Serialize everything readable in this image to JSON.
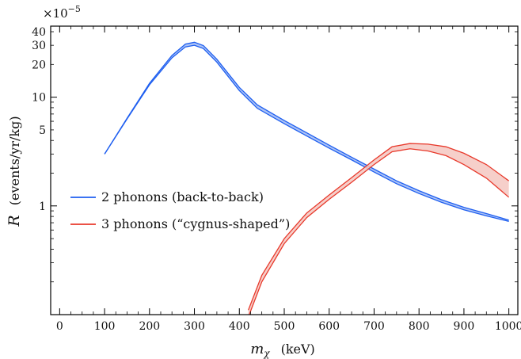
{
  "chart_data": {
    "type": "line",
    "title": "",
    "multiplier_label": "×10",
    "multiplier_exponent": "−5",
    "xlabel_symbol": "m",
    "xlabel_subscript": "χ",
    "xlabel_unit": "(keV)",
    "ylabel_symbol": "R",
    "ylabel_unit": "(events/yr/kg)",
    "xlim": [
      -20,
      1020
    ],
    "ylim": [
      0.1,
      45
    ],
    "y_scale": "log",
    "x_ticks": [
      0,
      100,
      200,
      300,
      400,
      500,
      600,
      700,
      800,
      900,
      1000
    ],
    "x_tick_labels": [
      "0",
      "100",
      "200",
      "300",
      "400",
      "500",
      "600",
      "700",
      "800",
      "900",
      "1000"
    ],
    "y_ticks": [
      1,
      5,
      10,
      20,
      30,
      40
    ],
    "y_tick_labels": [
      "1",
      "5",
      "10",
      "20",
      "30",
      "40"
    ],
    "grid": false,
    "legend_position": "center-left",
    "series": [
      {
        "name": "2 phonons (back-to-back)",
        "color": "#1f5ff0",
        "fill": "#9db8f5",
        "x": [
          100,
          150,
          200,
          250,
          280,
          300,
          320,
          350,
          400,
          440,
          500,
          550,
          600,
          650,
          700,
          750,
          800,
          850,
          900,
          950,
          1000
        ],
        "lower": [
          3.0,
          6.3,
          13.0,
          23.0,
          29.0,
          30.0,
          28.0,
          21.0,
          11.5,
          7.9,
          5.7,
          4.4,
          3.4,
          2.65,
          2.05,
          1.6,
          1.3,
          1.08,
          0.92,
          0.81,
          0.72
        ],
        "upper": [
          3.0,
          6.4,
          13.4,
          24.2,
          30.8,
          32.0,
          29.8,
          22.3,
          12.3,
          8.5,
          6.1,
          4.7,
          3.62,
          2.8,
          2.18,
          1.7,
          1.38,
          1.14,
          0.97,
          0.85,
          0.74
        ]
      },
      {
        "name": "3 phonons (“cygnus-shaped”)",
        "color": "#e8392b",
        "fill": "#f4c7c1",
        "x": [
          420,
          450,
          500,
          550,
          600,
          650,
          700,
          740,
          780,
          820,
          860,
          900,
          950,
          1000
        ],
        "lower": [
          0.095,
          0.2,
          0.45,
          0.78,
          1.15,
          1.65,
          2.4,
          3.15,
          3.35,
          3.2,
          2.9,
          2.4,
          1.8,
          1.2
        ],
        "upper": [
          0.11,
          0.23,
          0.5,
          0.86,
          1.26,
          1.82,
          2.65,
          3.5,
          3.75,
          3.7,
          3.5,
          3.05,
          2.4,
          1.7
        ]
      }
    ]
  }
}
